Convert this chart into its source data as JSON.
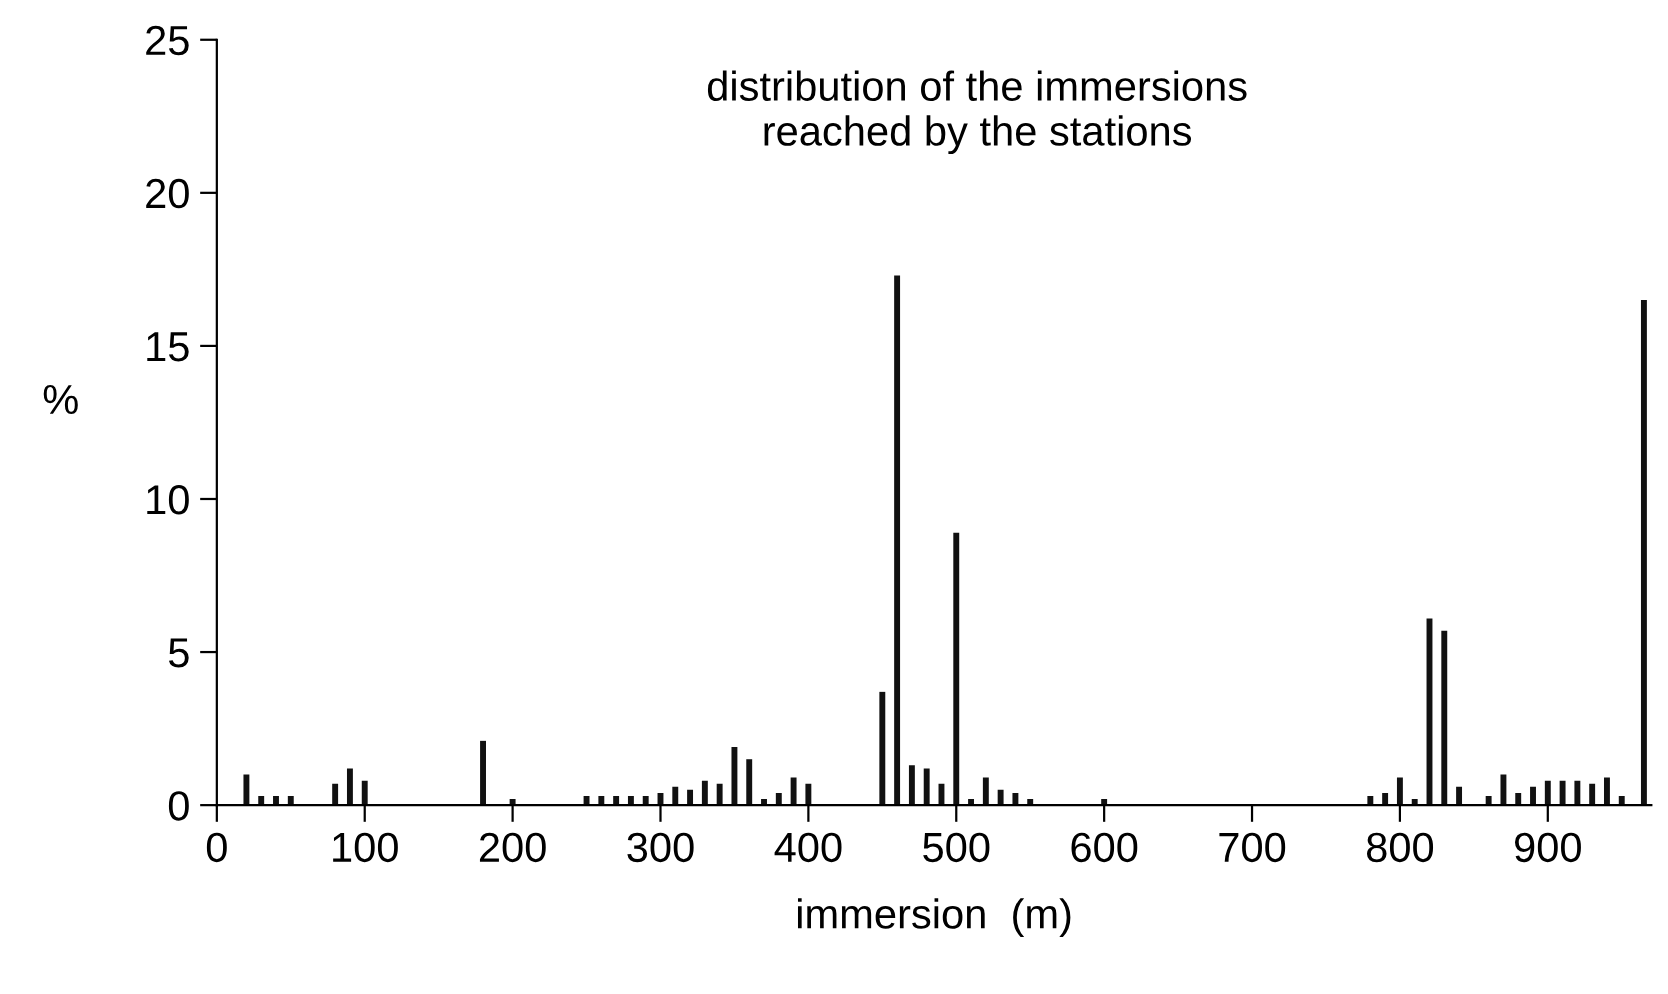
{
  "chart_data": {
    "type": "bar",
    "title": "distribution of the immersions\nreached by the stations",
    "xlabel": "immersion  (m)",
    "ylabel": "%",
    "color": "#111111",
    "x": [
      20,
      30,
      40,
      50,
      80,
      90,
      100,
      180,
      200,
      250,
      260,
      270,
      280,
      290,
      300,
      310,
      320,
      330,
      340,
      350,
      360,
      370,
      380,
      390,
      400,
      450,
      460,
      470,
      480,
      490,
      500,
      510,
      520,
      530,
      540,
      550,
      600,
      780,
      790,
      800,
      810,
      820,
      830,
      840,
      860,
      870,
      880,
      890,
      900,
      910,
      920,
      930,
      940,
      950,
      965
    ],
    "values": [
      1.0,
      0.3,
      0.3,
      0.3,
      0.7,
      1.2,
      0.8,
      2.1,
      0.2,
      0.3,
      0.3,
      0.3,
      0.3,
      0.3,
      0.4,
      0.6,
      0.5,
      0.8,
      0.7,
      1.9,
      1.5,
      0.2,
      0.4,
      0.9,
      0.7,
      3.7,
      17.3,
      1.3,
      1.2,
      0.7,
      8.9,
      0.2,
      0.9,
      0.5,
      0.4,
      0.2,
      0.2,
      0.3,
      0.4,
      0.9,
      0.2,
      6.1,
      5.7,
      0.6,
      0.3,
      1.0,
      0.4,
      0.6,
      0.8,
      0.8,
      0.8,
      0.7,
      0.9,
      0.3,
      16.5
    ],
    "xlim": [
      0,
      970
    ],
    "xticks": [
      0,
      100,
      200,
      300,
      400,
      500,
      600,
      700,
      800,
      900
    ],
    "ylim": [
      0,
      25
    ],
    "yticks": [
      0,
      5,
      10,
      15,
      20,
      25
    ],
    "grid": false,
    "legend": false
  }
}
